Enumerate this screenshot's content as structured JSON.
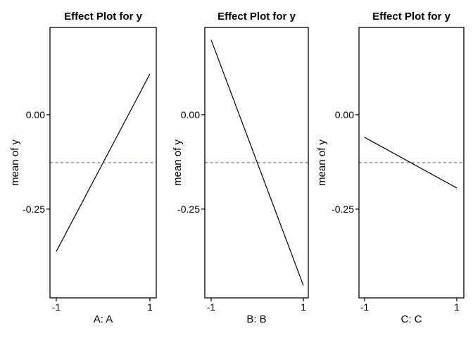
{
  "figure": {
    "background": "#ffffff",
    "description": "Three side-by-side main-effect plots for response y"
  },
  "chart_data": {
    "type": "line",
    "panels": [
      {
        "title": "Effect Plot for y",
        "xlabel": "A: A",
        "ylabel": "mean of y",
        "x": [
          -1,
          1
        ],
        "y": [
          -0.362,
          0.108
        ]
      },
      {
        "title": "Effect Plot for y",
        "xlabel": "B: B",
        "ylabel": "mean of y",
        "x": [
          -1,
          1
        ],
        "y": [
          0.198,
          -0.452
        ]
      },
      {
        "title": "Effect Plot for y",
        "xlabel": "C: C",
        "ylabel": "mean of y",
        "x": [
          -1,
          1
        ],
        "y": [
          -0.06,
          -0.194
        ]
      }
    ],
    "reference_line": {
      "value": -0.127,
      "style": "dashed",
      "color": "#3b4a67"
    },
    "y_axis": {
      "ticks": [
        0,
        -0.25
      ],
      "tick_labels": [
        "0.00",
        "-0.25"
      ],
      "range": [
        -0.485,
        0.231
      ]
    },
    "x_axis": {
      "ticks": [
        -1,
        1
      ],
      "tick_labels": [
        "-1",
        "1"
      ],
      "range": [
        -1.14,
        1.14
      ]
    },
    "line_color": "#000000",
    "box_color": "#000000",
    "grid": false,
    "legend": false
  }
}
